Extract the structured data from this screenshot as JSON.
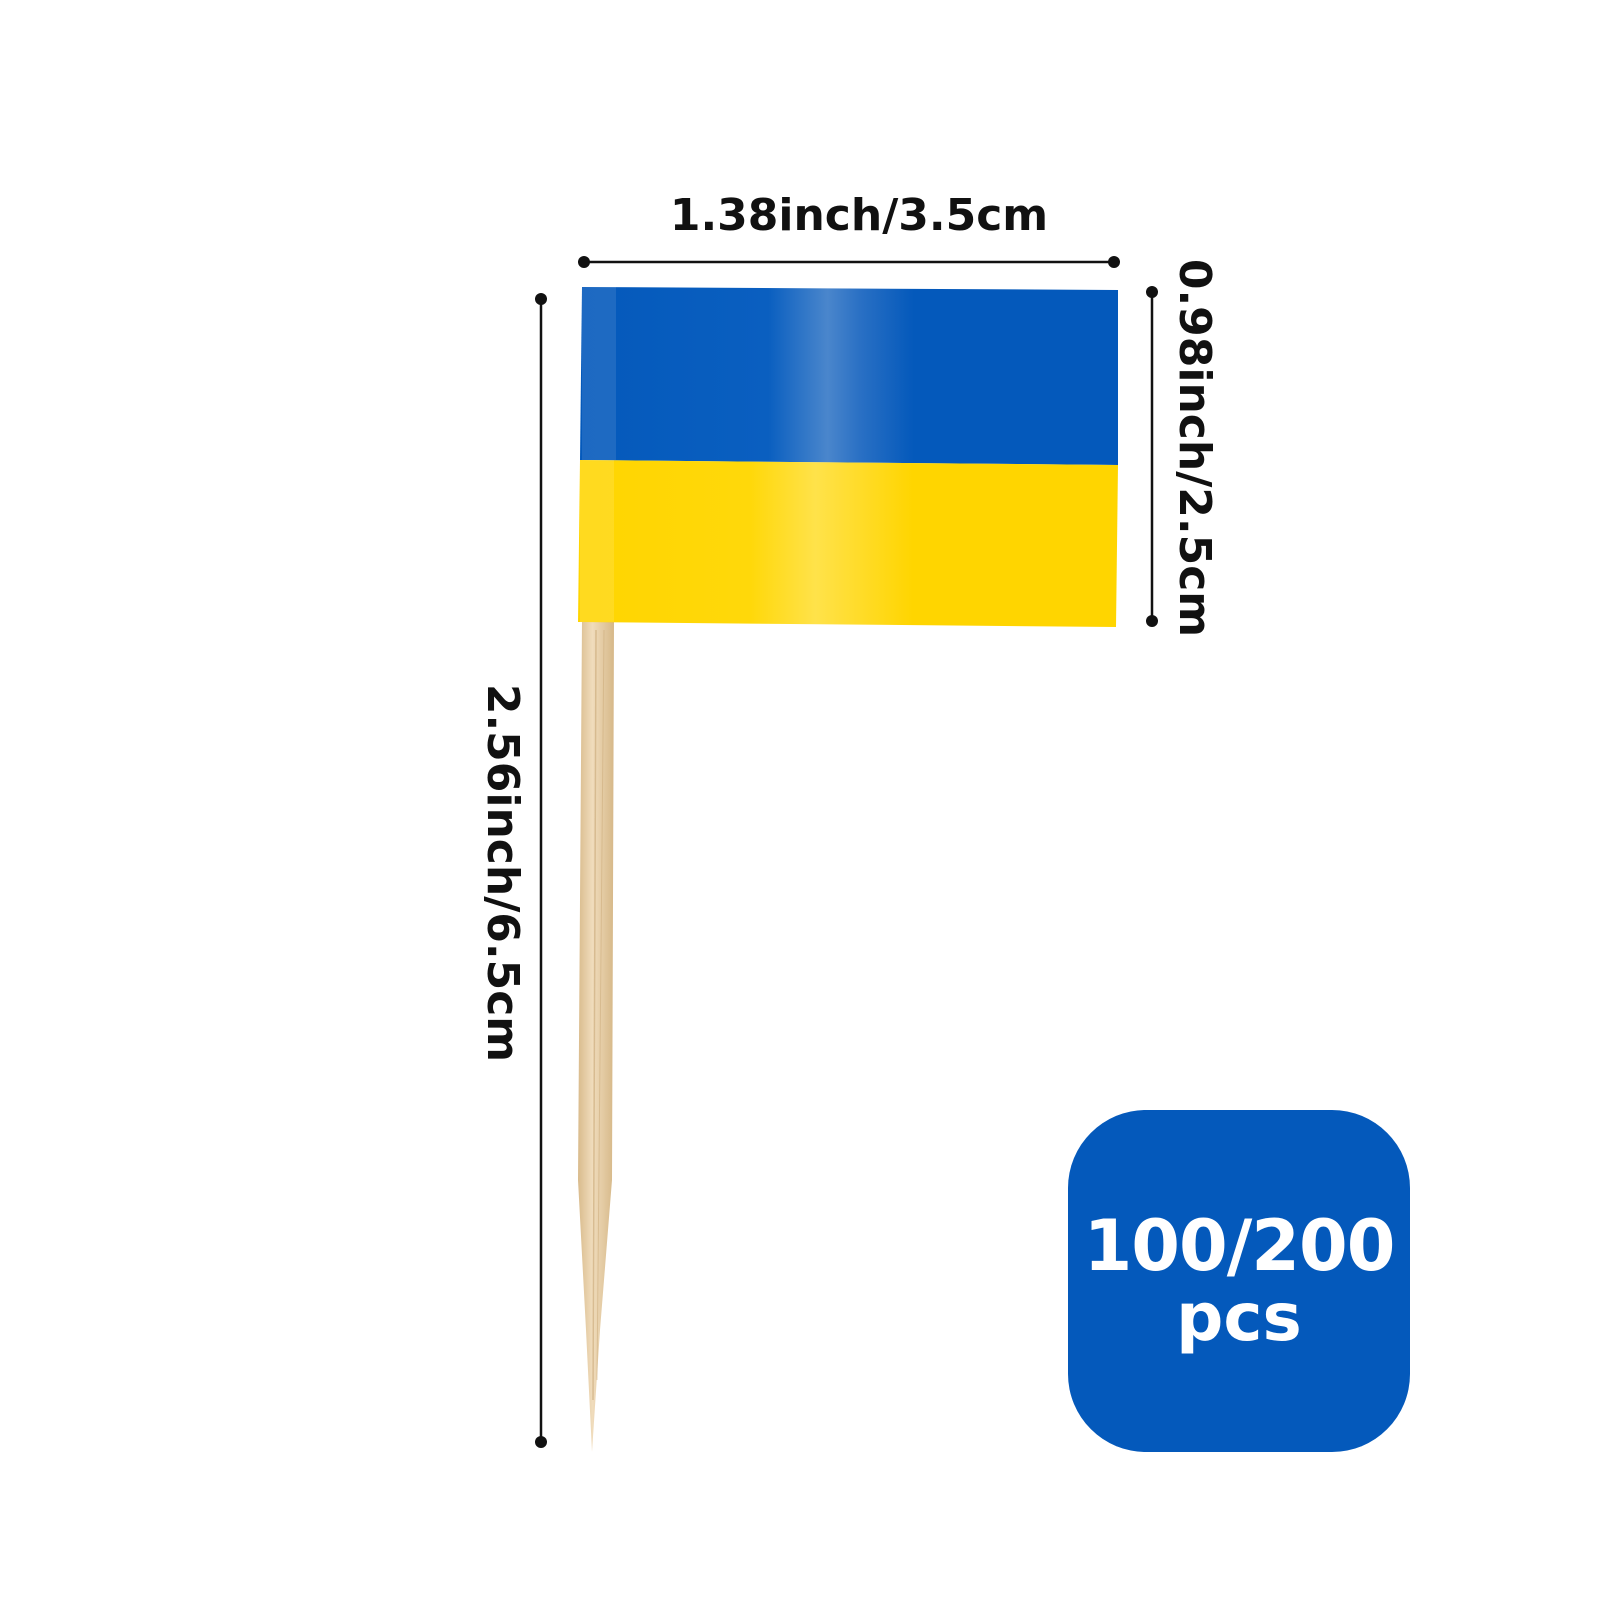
{
  "dimensions": {
    "flag_width": "1.38inch/3.5cm",
    "flag_height": "0.98inch/2.5cm",
    "total_length": "2.56inch/6.5cm"
  },
  "badge": {
    "quantity": "100/200",
    "unit": "pcs",
    "color": "#0459bb"
  },
  "flag": {
    "name": "Ukraine flag toothpick",
    "top_color": "#0459bb",
    "bottom_color": "#ffd500",
    "stick_color": "#e3c9a0"
  }
}
